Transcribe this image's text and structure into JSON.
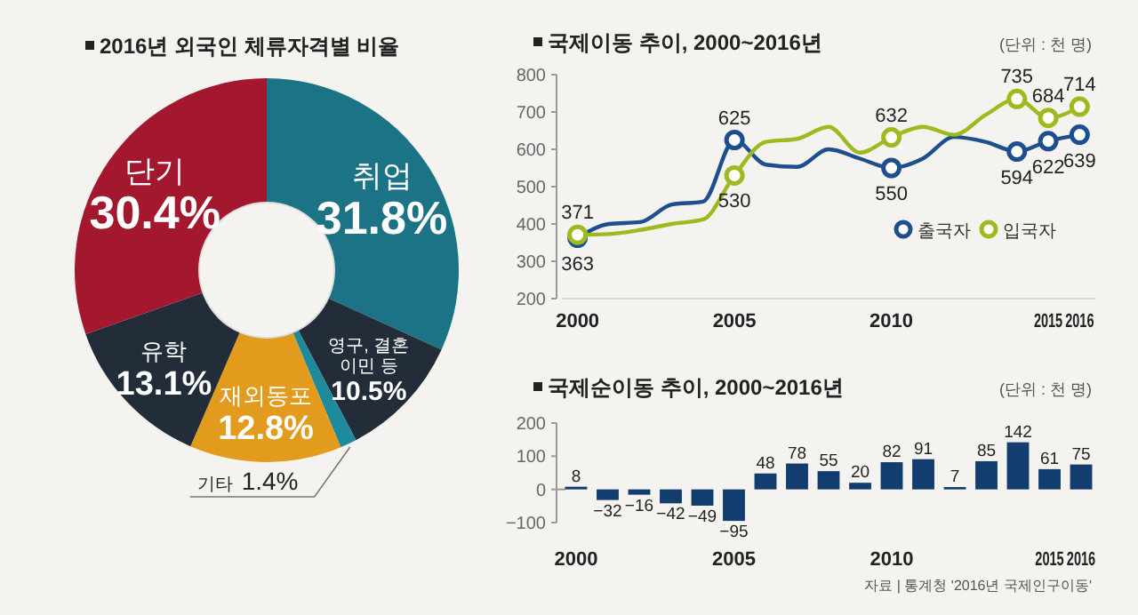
{
  "chart_data": [
    {
      "type": "donut",
      "title": "2016년 외국인 체류자격별 비율",
      "categories": [
        "취업",
        "영구, 결혼 이민 등",
        "기타",
        "재외동포",
        "유학",
        "단기"
      ],
      "values": [
        31.8,
        10.5,
        1.4,
        12.8,
        13.1,
        30.4
      ],
      "value_labels": [
        "31.8%",
        "10.5%",
        "1.4%",
        "12.8%",
        "13.1%",
        "30.4%"
      ],
      "colors": [
        "#1b7385",
        "#222d39",
        "#1f8a9c",
        "#e39b1d",
        "#222d39",
        "#a3172f"
      ]
    },
    {
      "type": "line",
      "title": "국제이동 추이, 2000~2016년",
      "annotations": [
        "(단위 : 천 명)"
      ],
      "x": [
        2000,
        2001,
        2002,
        2003,
        2004,
        2005,
        2006,
        2007,
        2008,
        2009,
        2010,
        2011,
        2012,
        2013,
        2014,
        2015,
        2016
      ],
      "series": [
        {
          "name": "출국자",
          "color": "#1d4f8f",
          "values": [
            363,
            400,
            405,
            452,
            460,
            625,
            559,
            553,
            600,
            575,
            550,
            575,
            633,
            620,
            594,
            622,
            639
          ],
          "value_labels": [
            "363",
            null,
            null,
            null,
            null,
            "625",
            null,
            null,
            null,
            null,
            "550",
            null,
            null,
            null,
            "594",
            "622",
            "639"
          ]
        },
        {
          "name": "입국자",
          "color": "#9dbb1f",
          "values": [
            371,
            373,
            384,
            400,
            412,
            530,
            620,
            628,
            660,
            591,
            632,
            660,
            639,
            692,
            735,
            684,
            714
          ],
          "value_labels": [
            "371",
            null,
            null,
            null,
            null,
            "530",
            null,
            null,
            null,
            null,
            "632",
            null,
            null,
            null,
            "735",
            "684",
            "714"
          ]
        }
      ],
      "xlim": [
        1999.5,
        2016.5
      ],
      "xticks": [
        2000,
        2005,
        2010,
        2015,
        2016
      ],
      "ylim": [
        200,
        800
      ],
      "yticks": [
        200,
        300,
        400,
        500,
        600,
        700,
        800
      ],
      "legend": "right"
    },
    {
      "type": "bar",
      "title": "국제순이동 추이, 2000~2016년",
      "annotations": [
        "(단위 : 천 명)",
        "자료 | 통계청 '2016년 국제인구이동'"
      ],
      "categories": [
        "2000",
        null,
        null,
        null,
        null,
        "2005",
        null,
        null,
        null,
        null,
        "2010",
        null,
        null,
        null,
        null,
        "2015",
        "2016"
      ],
      "values": [
        8,
        -32,
        -16,
        -42,
        -49,
        -95,
        48,
        78,
        55,
        20,
        82,
        91,
        7,
        85,
        142,
        61,
        75
      ],
      "color": "#123d6e",
      "ylim": [
        -100,
        200
      ],
      "yticks": [
        -100,
        0,
        100,
        200
      ],
      "data_labels": true
    }
  ]
}
